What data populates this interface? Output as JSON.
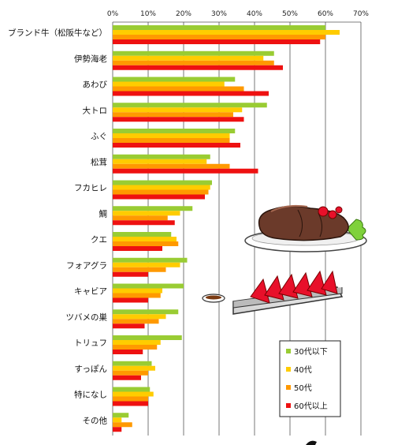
{
  "chart_data": {
    "type": "bar",
    "orientation": "horizontal",
    "x_ticks": [
      "0%",
      "10%",
      "20%",
      "30%",
      "40%",
      "50%",
      "60%",
      "70%"
    ],
    "xlim": [
      0,
      70
    ],
    "grid": true,
    "legend_position": "bottom-right",
    "categories": [
      "ブランド牛（松阪牛など）",
      "伊勢海老",
      "あわび",
      "大トロ",
      "ふぐ",
      "松茸",
      "フカヒレ",
      "鯛",
      "クエ",
      "フォアグラ",
      "キャビア",
      "ツバメの巣",
      "トリュフ",
      "すっぽん",
      "特になし",
      "その他"
    ],
    "series": [
      {
        "name": "30代以下",
        "color": "#99cc33",
        "values": [
          60,
          45.5,
          34.5,
          43.5,
          34.5,
          27.5,
          28,
          22.5,
          16.5,
          21,
          20,
          18.5,
          19.5,
          11,
          10.5,
          4.5
        ]
      },
      {
        "name": "40代",
        "color": "#ffcc00",
        "values": [
          64,
          42.5,
          31.5,
          36.5,
          33,
          26.5,
          27.5,
          19,
          18,
          19,
          14,
          15,
          13.5,
          12,
          11.5,
          2.5
        ]
      },
      {
        "name": "50代",
        "color": "#ff9900",
        "values": [
          60,
          45.5,
          37,
          34,
          33,
          33,
          27,
          15.5,
          18.5,
          15,
          13.5,
          13,
          12.5,
          10,
          10,
          5.5
        ]
      },
      {
        "name": "60代以上",
        "color": "#ee1111",
        "values": [
          58.5,
          48,
          44,
          37,
          36,
          41,
          26,
          17.5,
          14,
          10,
          10,
          9,
          8.5,
          8,
          10,
          2.5
        ]
      }
    ]
  }
}
